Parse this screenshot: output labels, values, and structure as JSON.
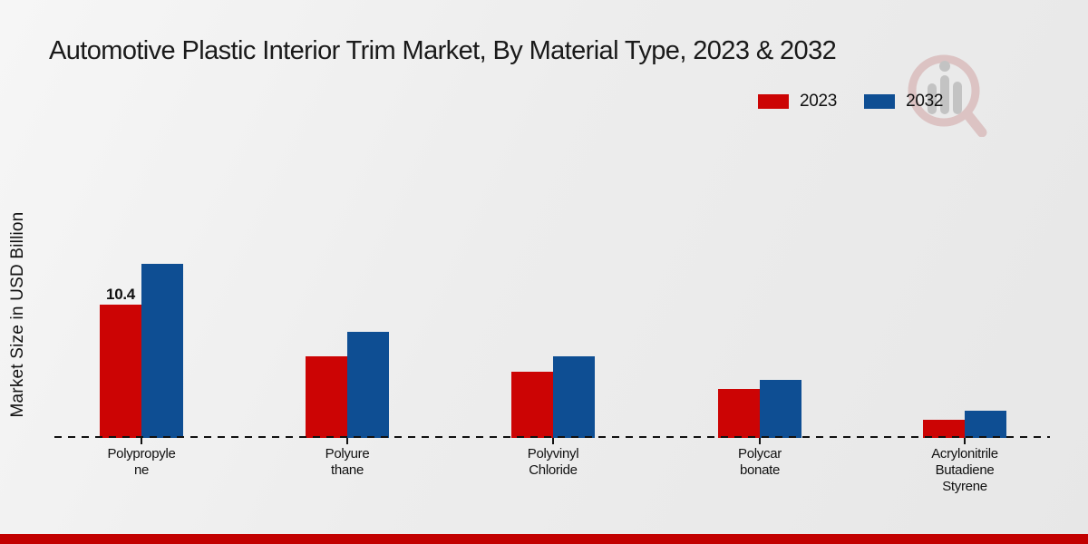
{
  "page": {
    "title": "Automotive Plastic Interior Trim Market, By Material Type, 2023 & 2032",
    "ylabel": "Market Size in USD Billion"
  },
  "legend": [
    {
      "label": "2023",
      "color": "#cc0404"
    },
    {
      "label": "2032",
      "color": "#0e4e93"
    }
  ],
  "chart_data": {
    "type": "bar",
    "title": "Automotive Plastic Interior Trim Market, By Material Type, 2023 & 2032",
    "xlabel": "",
    "ylabel": "Market Size in USD Billion",
    "unit": "USD Billion",
    "grid": false,
    "legend_position": "top-right",
    "ylim": [
      0,
      16
    ],
    "categories": [
      "Polypropylene",
      "Polyurethane",
      "Polyvinyl Chloride",
      "Polycarbonate",
      "Acrylonitrile Butadiene Styrene"
    ],
    "category_display_lines": [
      [
        "Polypropyle",
        "ne"
      ],
      [
        "Polyure",
        "thane"
      ],
      [
        "Polyvinyl",
        "Chloride"
      ],
      [
        "Polycar",
        "bonate"
      ],
      [
        "Acrylonitrile",
        "Butadiene",
        "Styrene"
      ]
    ],
    "series": [
      {
        "name": "2023",
        "color": "#cc0404",
        "values": [
          10.4,
          6.4,
          5.2,
          3.8,
          1.4
        ],
        "labels": [
          "10.4",
          "",
          "",
          "",
          ""
        ]
      },
      {
        "name": "2032",
        "color": "#0e4e93",
        "values": [
          13.6,
          8.3,
          6.4,
          4.5,
          2.1
        ],
        "labels": [
          "",
          "",
          "",
          "",
          ""
        ]
      }
    ]
  },
  "footer": {
    "bar_color": "#c20000"
  }
}
